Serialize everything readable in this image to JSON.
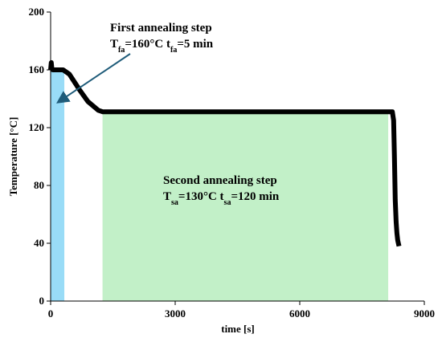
{
  "chart_data": {
    "type": "line",
    "title": "",
    "xlabel": "time [s]",
    "ylabel": "Temperature [°C]",
    "xlim": [
      0,
      9000
    ],
    "ylim": [
      0,
      200
    ],
    "x_ticks": [
      0,
      3000,
      6000,
      9000
    ],
    "x_tick_labels": [
      "0",
      "3000",
      "6000",
      "9000"
    ],
    "y_ticks": [
      0,
      40,
      80,
      120,
      160,
      200
    ],
    "y_tick_labels": [
      "0",
      "40",
      "80",
      "120",
      "160",
      "200"
    ],
    "grid": false,
    "series": [
      {
        "x": [
          0,
          15,
          30,
          50,
          100,
          300,
          450,
          700,
          900,
          1150,
          1250,
          2000,
          4000,
          6000,
          8000,
          8230,
          8260,
          8280,
          8300,
          8320,
          8340,
          8360,
          8390
        ],
        "y": [
          160,
          165,
          161,
          160,
          160,
          160,
          157,
          146,
          138,
          132,
          131,
          131,
          131,
          131,
          131,
          131,
          125,
          100,
          70,
          55,
          47,
          42,
          38
        ]
      }
    ],
    "shaded_regions": [
      {
        "x_start": 0,
        "x_end": 330,
        "y_top": 160,
        "color": "#99dcf7"
      },
      {
        "x_start": 1250,
        "x_end": 8130,
        "y_top": 131,
        "color": "#c2f0c8"
      }
    ],
    "line_color": "#000000",
    "arrow_color": "#1f5c7a",
    "annotations": [
      {
        "id": "first-step",
        "line1": "First annealing step",
        "line2_parts": [
          {
            "text": "T",
            "sub": false
          },
          {
            "text": "fa",
            "sub": true
          },
          {
            "text": "=160°C  t",
            "sub": false
          },
          {
            "text": "fa",
            "sub": true
          },
          {
            "text": "=5 min",
            "sub": false
          }
        ]
      },
      {
        "id": "second-step",
        "line1": "Second annealing step",
        "line2_parts": [
          {
            "text": "T",
            "sub": false
          },
          {
            "text": "sa",
            "sub": true
          },
          {
            "text": "=130°C  t",
            "sub": false
          },
          {
            "text": "sa",
            "sub": true
          },
          {
            "text": "=120 min",
            "sub": false
          }
        ]
      }
    ]
  }
}
